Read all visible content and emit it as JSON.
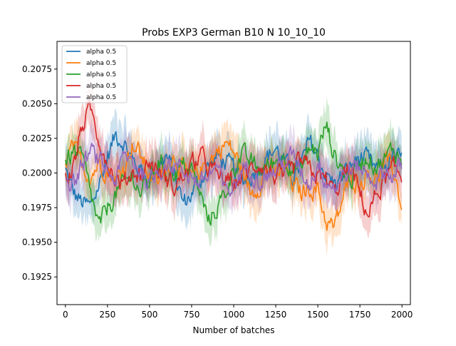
{
  "chart_data": {
    "type": "line",
    "title": "Probs EXP3 German B10 N 10_10_10",
    "xlabel": "Number of batches",
    "ylabel": "",
    "xlim": [
      -50,
      2050
    ],
    "ylim": [
      0.1905,
      0.2095
    ],
    "x_ticks": [
      0,
      250,
      500,
      750,
      1000,
      1250,
      1500,
      1750,
      2000
    ],
    "x_tick_labels": [
      "0",
      "250",
      "500",
      "750",
      "1000",
      "1250",
      "1500",
      "1750",
      "2000"
    ],
    "y_ticks": [
      0.1925,
      0.195,
      0.1975,
      0.2,
      0.2025,
      0.205,
      0.2075
    ],
    "y_tick_labels": [
      "0.1925",
      "0.1950",
      "0.1975",
      "0.2000",
      "0.2025",
      "0.2050",
      "0.2075"
    ],
    "grid": false,
    "legend_position": "top-left",
    "shaded_band": "semi-transparent band around each series",
    "series": [
      {
        "name": "alpha 0.5",
        "color": "#1f77b4",
        "x": [
          0,
          50,
          100,
          150,
          200,
          250,
          300,
          350,
          400,
          450,
          500,
          550,
          600,
          650,
          700,
          750,
          800,
          850,
          900,
          950,
          1000,
          1050,
          1100,
          1150,
          1200,
          1250,
          1300,
          1350,
          1400,
          1450,
          1500,
          1550,
          1600,
          1650,
          1700,
          1750,
          1800,
          1850,
          1900,
          1950,
          2000
        ],
        "values": [
          0.2002,
          0.1985,
          0.1978,
          0.1975,
          0.1992,
          0.2012,
          0.2028,
          0.2022,
          0.2008,
          0.2002,
          0.1995,
          0.2005,
          0.2012,
          0.1998,
          0.1978,
          0.1985,
          0.1995,
          0.2005,
          0.2012,
          0.2008,
          0.2002,
          0.1995,
          0.1998,
          0.2005,
          0.2012,
          0.2018,
          0.2008,
          0.1998,
          0.2005,
          0.2022,
          0.2012,
          0.1998,
          0.1992,
          0.1998,
          0.2005,
          0.2012,
          0.2008,
          0.2002,
          0.2005,
          0.2012,
          0.2008
        ]
      },
      {
        "name": "alpha 0.5",
        "color": "#ff7f0e",
        "x": [
          0,
          50,
          100,
          150,
          200,
          250,
          300,
          350,
          400,
          450,
          500,
          550,
          600,
          650,
          700,
          750,
          800,
          850,
          900,
          950,
          1000,
          1050,
          1100,
          1150,
          1200,
          1250,
          1300,
          1350,
          1400,
          1450,
          1500,
          1550,
          1600,
          1650,
          1700,
          1750,
          1800,
          1850,
          1900,
          1950,
          2000
        ],
        "values": [
          0.201,
          0.2018,
          0.2005,
          0.1998,
          0.2008,
          0.2002,
          0.1995,
          0.2005,
          0.2022,
          0.2012,
          0.1998,
          0.1992,
          0.2005,
          0.2012,
          0.2002,
          0.1995,
          0.2002,
          0.2008,
          0.2015,
          0.2022,
          0.2015,
          0.2002,
          0.1985,
          0.1992,
          0.2002,
          0.1998,
          0.2005,
          0.1992,
          0.1985,
          0.199,
          0.1988,
          0.1965,
          0.196,
          0.1982,
          0.1998,
          0.1992,
          0.2002,
          0.1995,
          0.2008,
          0.2002,
          0.1975
        ]
      },
      {
        "name": "alpha 0.5",
        "color": "#2ca02c",
        "x": [
          0,
          50,
          100,
          150,
          200,
          250,
          300,
          350,
          400,
          450,
          500,
          550,
          600,
          650,
          700,
          750,
          800,
          850,
          900,
          950,
          1000,
          1050,
          1100,
          1150,
          1200,
          1250,
          1300,
          1350,
          1400,
          1450,
          1500,
          1550,
          1600,
          1650,
          1700,
          1750,
          1800,
          1850,
          1900,
          1950,
          2000
        ],
        "values": [
          0.2008,
          0.2015,
          0.201,
          0.1985,
          0.196,
          0.1975,
          0.1985,
          0.1992,
          0.1998,
          0.1985,
          0.1995,
          0.2008,
          0.2002,
          0.2,
          0.2005,
          0.2002,
          0.1985,
          0.1965,
          0.1975,
          0.1985,
          0.2005,
          0.2012,
          0.2008,
          0.2002,
          0.2005,
          0.2008,
          0.2012,
          0.2005,
          0.2002,
          0.2018,
          0.2015,
          0.2035,
          0.2012,
          0.2002,
          0.1995,
          0.2008,
          0.2012,
          0.2005,
          0.201,
          0.2018,
          0.2008
        ]
      },
      {
        "name": "alpha 0.5",
        "color": "#d62728",
        "x": [
          0,
          50,
          100,
          150,
          200,
          250,
          300,
          350,
          400,
          450,
          500,
          550,
          600,
          650,
          700,
          750,
          800,
          850,
          900,
          950,
          1000,
          1050,
          1100,
          1150,
          1200,
          1250,
          1300,
          1350,
          1400,
          1450,
          1500,
          1550,
          1600,
          1650,
          1700,
          1750,
          1800,
          1850,
          1900,
          1950,
          2000
        ],
        "values": [
          0.1995,
          0.2005,
          0.2035,
          0.2045,
          0.2025,
          0.2008,
          0.1995,
          0.1992,
          0.2002,
          0.1998,
          0.2008,
          0.2002,
          0.1995,
          0.199,
          0.1998,
          0.2005,
          0.2012,
          0.2005,
          0.1998,
          0.1995,
          0.1992,
          0.1998,
          0.2002,
          0.2008,
          0.2002,
          0.1998,
          0.1995,
          0.2002,
          0.2008,
          0.2002,
          0.1998,
          0.1995,
          0.1985,
          0.1998,
          0.2002,
          0.1985,
          0.197,
          0.1985,
          0.1995,
          0.2002,
          0.1998
        ]
      },
      {
        "name": "alpha 0.5",
        "color": "#9467bd",
        "x": [
          0,
          50,
          100,
          150,
          200,
          250,
          300,
          350,
          400,
          450,
          500,
          550,
          600,
          650,
          700,
          750,
          800,
          850,
          900,
          950,
          1000,
          1050,
          1100,
          1150,
          1200,
          1250,
          1300,
          1350,
          1400,
          1450,
          1500,
          1550,
          1600,
          1650,
          1700,
          1750,
          1800,
          1850,
          1900,
          1950,
          2000
        ],
        "values": [
          0.1998,
          0.1992,
          0.2005,
          0.2015,
          0.2008,
          0.2002,
          0.1995,
          0.2012,
          0.2008,
          0.2002,
          0.1992,
          0.2002,
          0.2008,
          0.2005,
          0.2002,
          0.1998,
          0.1992,
          0.1998,
          0.2005,
          0.1985,
          0.199,
          0.2002,
          0.2005,
          0.1995,
          0.1998,
          0.2002,
          0.2008,
          0.2012,
          0.2002,
          0.1992,
          0.2008,
          0.1995,
          0.199,
          0.1998,
          0.2002,
          0.2005,
          0.1998,
          0.1995,
          0.2002,
          0.1998,
          0.2005
        ]
      }
    ]
  }
}
